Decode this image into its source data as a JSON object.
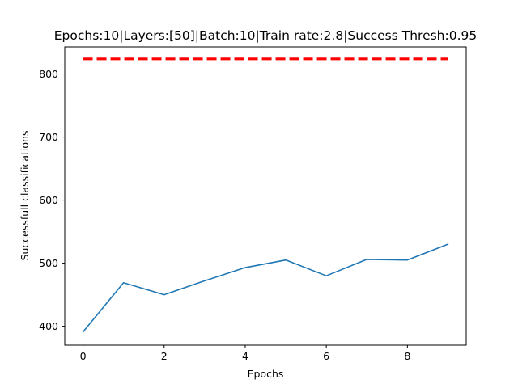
{
  "chart_data": {
    "type": "line",
    "title": "Epochs:10|Layers:[50]|Batch:10|Train rate:2.8|Success Thresh:0.95",
    "xlabel": "Epochs",
    "ylabel": "Successfull classifications",
    "xlim": [
      -0.45,
      9.45
    ],
    "ylim": [
      370,
      843
    ],
    "x_ticks": [
      0,
      2,
      4,
      6,
      8
    ],
    "y_ticks": [
      400,
      500,
      600,
      700,
      800
    ],
    "grid": false,
    "legend": "none",
    "series": [
      {
        "x": [
          0,
          1,
          2,
          3,
          4,
          5,
          6,
          7,
          8,
          9
        ],
        "values": [
          391,
          469,
          450,
          472,
          493,
          505,
          480,
          506,
          505,
          530
        ],
        "color": "#1f77b4",
        "style": "solid"
      },
      {
        "x": [
          0,
          9
        ],
        "values": [
          824,
          824
        ],
        "color": "#ff0000",
        "style": "dashed"
      }
    ]
  }
}
